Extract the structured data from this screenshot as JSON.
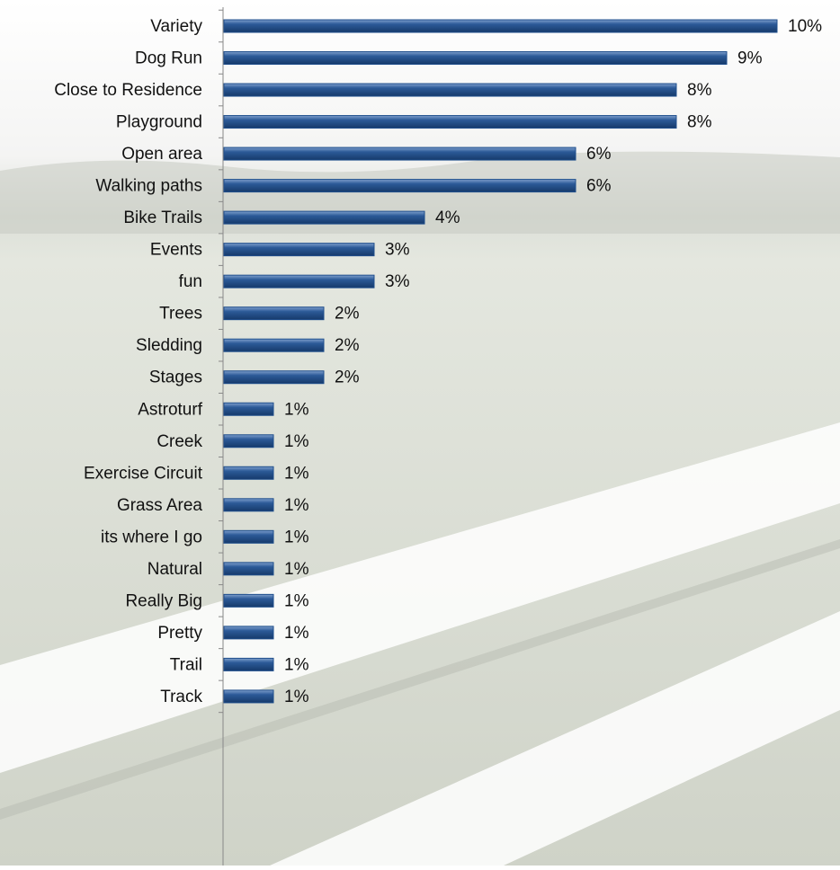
{
  "chart_data": {
    "type": "bar",
    "orientation": "horizontal",
    "categories": [
      "Variety",
      "Dog Run",
      "Close to Residence",
      "Playground",
      "Open area",
      "Walking paths",
      "Bike Trails",
      "Events",
      "fun",
      "Trees",
      "Sledding",
      "Stages",
      "Astroturf",
      "Creek",
      "Exercise Circuit",
      "Grass Area",
      "its where I go",
      "Natural",
      "Really Big",
      "Pretty",
      "Trail",
      "Track"
    ],
    "values": [
      9.9,
      9.0,
      8.1,
      8.1,
      6.3,
      6.3,
      3.6,
      2.7,
      2.7,
      1.8,
      1.8,
      1.8,
      0.9,
      0.9,
      0.9,
      0.9,
      0.9,
      0.9,
      0.9,
      0.9,
      0.9,
      0.9
    ],
    "value_labels": [
      "10%",
      "9%",
      "8%",
      "8%",
      "6%",
      "6%",
      "4%",
      "3%",
      "3%",
      "2%",
      "2%",
      "2%",
      "1%",
      "1%",
      "1%",
      "1%",
      "1%",
      "1%",
      "1%",
      "1%",
      "1%",
      "1%"
    ],
    "color": "#1f4e8c"
  }
}
